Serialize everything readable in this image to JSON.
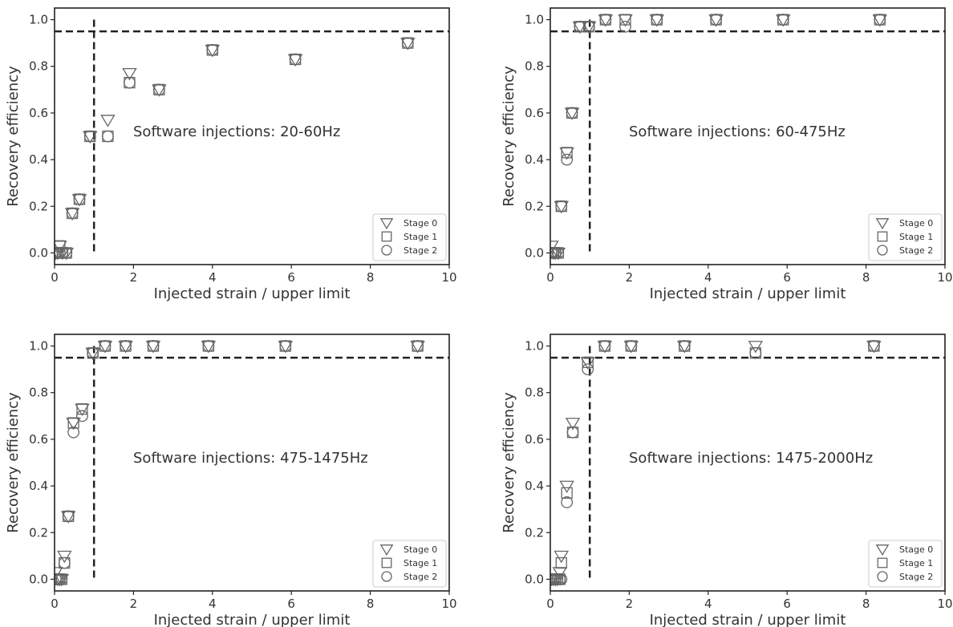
{
  "chart_data": [
    {
      "type": "scatter",
      "xlabel": "Injected strain / upper limit",
      "ylabel": "Recovery efficiency",
      "xlim": [
        0,
        10
      ],
      "ylim": [
        -0.05,
        1.05
      ],
      "xticks": [
        0,
        2,
        4,
        6,
        8,
        10
      ],
      "yticks": [
        0.0,
        0.2,
        0.4,
        0.6,
        0.8,
        1.0
      ],
      "xtick_labels": [
        "0",
        "2",
        "4",
        "6",
        "8",
        "10"
      ],
      "ytick_labels": [
        "0.0",
        "0.2",
        "0.4",
        "0.6",
        "0.8",
        "1.0"
      ],
      "annotation": "Software injections: 20-60Hz",
      "threshold_y": 0.95,
      "threshold_x": 1.0,
      "grid": false,
      "legend_position": "lower-right",
      "series": [
        {
          "name": "Stage 0",
          "marker": "triangle-down",
          "x": [
            0.03,
            0.08,
            0.13,
            0.2,
            0.3,
            0.45,
            0.63,
            0.9,
            1.35,
            1.9,
            2.65,
            4.0,
            6.1,
            8.95
          ],
          "y": [
            0.0,
            0.0,
            0.03,
            0.0,
            0.0,
            0.17,
            0.23,
            0.5,
            0.57,
            0.77,
            0.7,
            0.87,
            0.83,
            0.9
          ]
        },
        {
          "name": "Stage 1",
          "marker": "square",
          "x": [
            0.03,
            0.08,
            0.13,
            0.2,
            0.3,
            0.45,
            0.63,
            0.9,
            1.35,
            1.9,
            2.65,
            4.0,
            6.1,
            8.95
          ],
          "y": [
            0.0,
            0.0,
            0.03,
            0.0,
            0.0,
            0.17,
            0.23,
            0.5,
            0.5,
            0.73,
            0.7,
            0.87,
            0.83,
            0.9
          ]
        },
        {
          "name": "Stage 2",
          "marker": "circle",
          "x": [
            0.03,
            0.08,
            0.13,
            0.2,
            0.3,
            0.45,
            0.63,
            0.9,
            1.35,
            1.9,
            2.65,
            4.0,
            6.1,
            8.95
          ],
          "y": [
            0.0,
            0.0,
            0.0,
            0.0,
            0.0,
            0.17,
            0.23,
            0.5,
            0.5,
            0.73,
            0.7,
            0.87,
            0.83,
            0.9
          ]
        }
      ]
    },
    {
      "type": "scatter",
      "xlabel": "Injected strain / upper limit",
      "ylabel": "Recovery efficiency",
      "xlim": [
        0,
        10
      ],
      "ylim": [
        -0.05,
        1.05
      ],
      "xticks": [
        0,
        2,
        4,
        6,
        8,
        10
      ],
      "yticks": [
        0.0,
        0.2,
        0.4,
        0.6,
        0.8,
        1.0
      ],
      "xtick_labels": [
        "0",
        "2",
        "4",
        "6",
        "8",
        "10"
      ],
      "ytick_labels": [
        "0.0",
        "0.2",
        "0.4",
        "0.6",
        "0.8",
        "1.0"
      ],
      "annotation": "Software injections: 60-475Hz",
      "threshold_y": 0.95,
      "threshold_x": 1.0,
      "grid": false,
      "legend_position": "lower-right",
      "series": [
        {
          "name": "Stage 0",
          "marker": "triangle-down",
          "x": [
            0.03,
            0.08,
            0.13,
            0.2,
            0.28,
            0.42,
            0.55,
            0.75,
            0.98,
            1.4,
            1.9,
            2.7,
            4.2,
            5.9,
            8.35
          ],
          "y": [
            0.03,
            0.0,
            0.0,
            0.0,
            0.2,
            0.43,
            0.6,
            0.97,
            0.97,
            1.0,
            1.0,
            1.0,
            1.0,
            1.0,
            1.0
          ]
        },
        {
          "name": "Stage 1",
          "marker": "square",
          "x": [
            0.03,
            0.08,
            0.13,
            0.2,
            0.28,
            0.42,
            0.55,
            0.75,
            0.98,
            1.4,
            1.9,
            2.7,
            4.2,
            5.9,
            8.35
          ],
          "y": [
            0.0,
            0.0,
            0.0,
            0.0,
            0.2,
            0.43,
            0.6,
            0.97,
            0.97,
            1.0,
            1.0,
            1.0,
            1.0,
            1.0,
            1.0
          ]
        },
        {
          "name": "Stage 2",
          "marker": "circle",
          "x": [
            0.03,
            0.08,
            0.13,
            0.2,
            0.28,
            0.42,
            0.55,
            0.75,
            0.98,
            1.4,
            1.9,
            2.7,
            4.2,
            5.9,
            8.35
          ],
          "y": [
            0.0,
            0.0,
            0.0,
            0.0,
            0.2,
            0.4,
            0.6,
            0.97,
            0.97,
            1.0,
            0.97,
            1.0,
            1.0,
            1.0,
            1.0
          ]
        }
      ]
    },
    {
      "type": "scatter",
      "xlabel": "Injected strain / upper limit",
      "ylabel": "Recovery efficiency",
      "xlim": [
        0,
        10
      ],
      "ylim": [
        -0.05,
        1.05
      ],
      "xticks": [
        0,
        2,
        4,
        6,
        8,
        10
      ],
      "yticks": [
        0.0,
        0.2,
        0.4,
        0.6,
        0.8,
        1.0
      ],
      "xtick_labels": [
        "0",
        "2",
        "4",
        "6",
        "8",
        "10"
      ],
      "ytick_labels": [
        "0.0",
        "0.2",
        "0.4",
        "0.6",
        "0.8",
        "1.0"
      ],
      "annotation": "Software injections: 475-1475Hz",
      "threshold_y": 0.95,
      "threshold_x": 1.0,
      "grid": false,
      "legend_position": "lower-right",
      "series": [
        {
          "name": "Stage 0",
          "marker": "triangle-down",
          "x": [
            0.03,
            0.08,
            0.13,
            0.18,
            0.25,
            0.35,
            0.48,
            0.7,
            0.97,
            1.28,
            1.8,
            2.5,
            3.9,
            5.85,
            9.2
          ],
          "y": [
            0.03,
            0.0,
            0.0,
            0.0,
            0.1,
            0.27,
            0.67,
            0.73,
            0.97,
            1.0,
            1.0,
            1.0,
            1.0,
            1.0,
            1.0
          ]
        },
        {
          "name": "Stage 1",
          "marker": "square",
          "x": [
            0.03,
            0.08,
            0.13,
            0.18,
            0.25,
            0.35,
            0.48,
            0.7,
            0.97,
            1.28,
            1.8,
            2.5,
            3.9,
            5.85,
            9.2
          ],
          "y": [
            0.0,
            0.0,
            0.0,
            0.0,
            0.07,
            0.27,
            0.67,
            0.73,
            0.97,
            1.0,
            1.0,
            1.0,
            1.0,
            1.0,
            1.0
          ]
        },
        {
          "name": "Stage 2",
          "marker": "circle",
          "x": [
            0.03,
            0.08,
            0.13,
            0.18,
            0.25,
            0.35,
            0.48,
            0.7,
            0.97,
            1.28,
            1.8,
            2.5,
            3.9,
            5.85,
            9.2
          ],
          "y": [
            0.0,
            0.0,
            0.0,
            0.0,
            0.07,
            0.27,
            0.63,
            0.7,
            0.97,
            1.0,
            1.0,
            1.0,
            1.0,
            1.0,
            1.0
          ]
        }
      ]
    },
    {
      "type": "scatter",
      "xlabel": "Injected strain / upper limit",
      "ylabel": "Recovery efficiency",
      "xlim": [
        0,
        10
      ],
      "ylim": [
        -0.05,
        1.05
      ],
      "xticks": [
        0,
        2,
        4,
        6,
        8,
        10
      ],
      "yticks": [
        0.0,
        0.2,
        0.4,
        0.6,
        0.8,
        1.0
      ],
      "xtick_labels": [
        "0",
        "2",
        "4",
        "6",
        "8",
        "10"
      ],
      "ytick_labels": [
        "0.0",
        "0.2",
        "0.4",
        "0.6",
        "0.8",
        "1.0"
      ],
      "annotation": "Software injections: 1475-2000Hz",
      "threshold_y": 0.95,
      "threshold_x": 1.0,
      "grid": false,
      "legend_position": "lower-right",
      "series": [
        {
          "name": "Stage 0",
          "marker": "triangle-down",
          "x": [
            0.03,
            0.08,
            0.13,
            0.18,
            0.24,
            0.28,
            0.42,
            0.57,
            0.95,
            1.38,
            2.05,
            3.4,
            5.2,
            8.2
          ],
          "y": [
            0.0,
            0.0,
            0.0,
            0.0,
            0.03,
            0.1,
            0.4,
            0.67,
            0.93,
            1.0,
            1.0,
            1.0,
            1.0,
            1.0
          ]
        },
        {
          "name": "Stage 1",
          "marker": "square",
          "x": [
            0.03,
            0.08,
            0.13,
            0.18,
            0.24,
            0.28,
            0.42,
            0.57,
            0.95,
            1.38,
            2.05,
            3.4,
            5.2,
            8.2
          ],
          "y": [
            0.0,
            0.0,
            0.0,
            0.0,
            0.0,
            0.07,
            0.37,
            0.63,
            0.93,
            1.0,
            1.0,
            1.0,
            0.97,
            1.0
          ]
        },
        {
          "name": "Stage 2",
          "marker": "circle",
          "x": [
            0.03,
            0.08,
            0.13,
            0.18,
            0.24,
            0.28,
            0.42,
            0.57,
            0.95,
            1.38,
            2.05,
            3.4,
            5.2,
            8.2
          ],
          "y": [
            0.0,
            0.0,
            0.0,
            0.0,
            0.0,
            0.0,
            0.33,
            0.63,
            0.9,
            1.0,
            1.0,
            1.0,
            0.97,
            1.0
          ]
        }
      ]
    }
  ]
}
